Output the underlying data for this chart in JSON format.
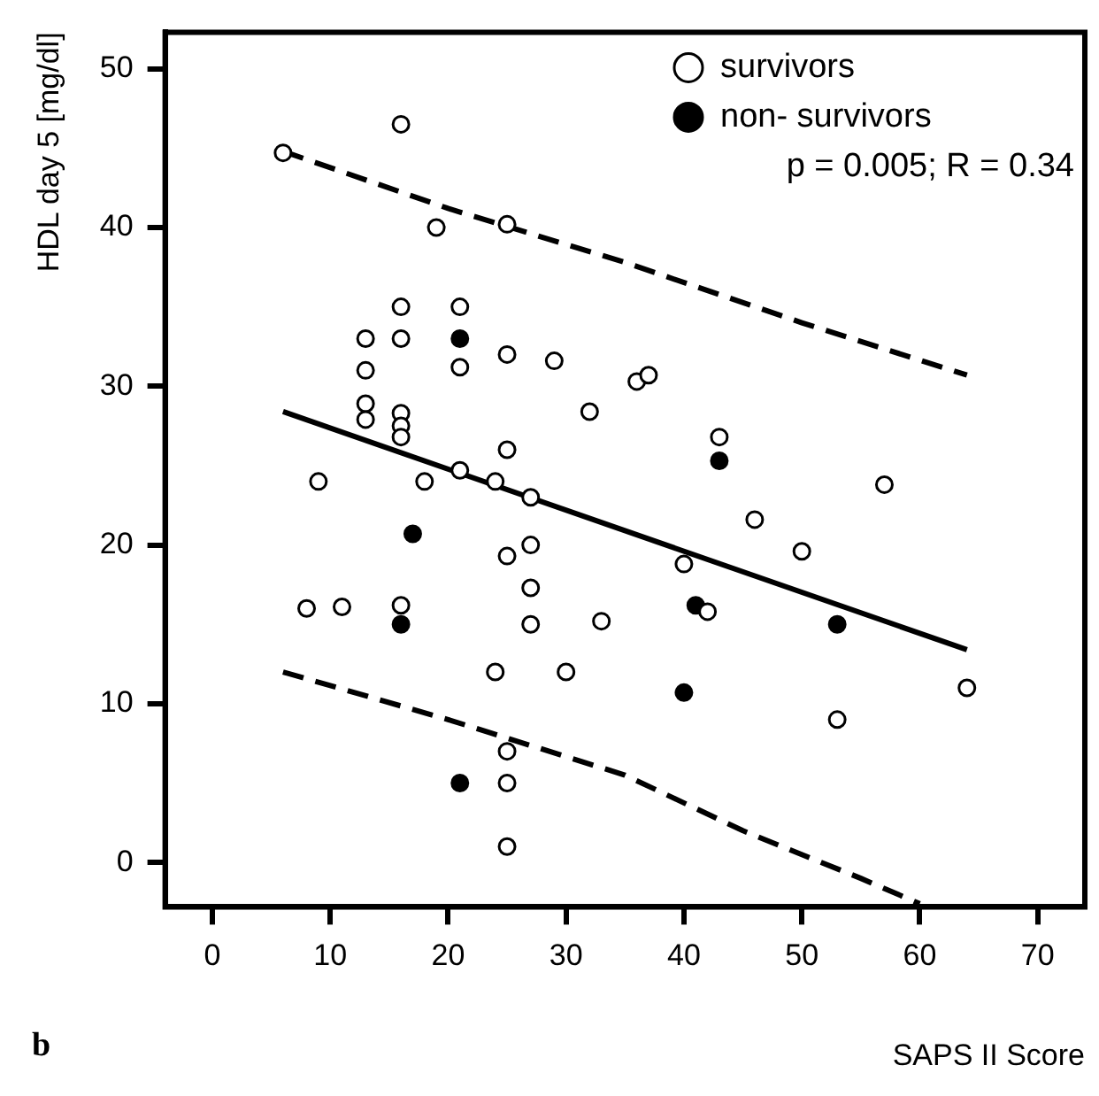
{
  "chart_data": {
    "type": "scatter",
    "xlabel": "SAPS II Score",
    "ylabel": "HDL day 5 [mg/dl]",
    "xlim": [
      -4,
      74
    ],
    "xticks": [
      0,
      10,
      20,
      30,
      40,
      50,
      60,
      70
    ],
    "ylim": [
      -2.8,
      52.3
    ],
    "yticks": [
      0,
      10,
      20,
      30,
      40,
      50
    ],
    "grid": false,
    "legend": "top right",
    "marker": "circle",
    "annotations": [
      "p = 0.005; R = 0.34",
      "b"
    ],
    "series": [
      {
        "name": "survivors",
        "color": "#ffffff",
        "x": [
          6,
          16,
          19,
          25,
          16,
          21,
          13,
          16,
          21,
          25,
          29,
          13,
          13,
          13,
          16,
          16,
          16,
          36,
          37,
          32,
          43,
          9,
          18,
          21,
          24,
          25,
          27,
          57,
          46,
          50,
          27,
          25,
          27,
          8,
          11,
          16,
          40,
          42,
          27,
          33,
          24,
          30,
          53,
          64,
          25,
          25,
          25
        ],
        "values": [
          44.7,
          46.5,
          40,
          40.2,
          35,
          35,
          33,
          33,
          31.2,
          32,
          31.6,
          31,
          28.9,
          27.9,
          28.3,
          27.5,
          26.8,
          30.3,
          30.7,
          28.4,
          26.8,
          24,
          24,
          24.7,
          24,
          26,
          23,
          23.8,
          21.6,
          19.6,
          20,
          19.3,
          17.3,
          16,
          16.1,
          16.2,
          18.8,
          15.8,
          15,
          15.2,
          12,
          12,
          9,
          11,
          7,
          5,
          1
        ]
      },
      {
        "name": "non- survivors",
        "color": "#000000",
        "x": [
          21,
          17,
          16,
          43,
          41,
          40,
          53,
          21
        ],
        "values": [
          33,
          20.7,
          15,
          25.3,
          16.2,
          10.7,
          15,
          5
        ]
      },
      {
        "type": "line",
        "color": "#000000",
        "line_style": "solid",
        "marker": "none",
        "x": [
          6,
          64
        ],
        "values": [
          28.4,
          13.4
        ]
      },
      {
        "type": "line",
        "color": "#000000",
        "line_style": "dashed",
        "marker": "none",
        "x": [
          6,
          20,
          35,
          50,
          64
        ],
        "values": [
          44.8,
          41.2,
          37.8,
          34,
          30.7
        ]
      },
      {
        "type": "line",
        "color": "#000000",
        "line_style": "dashed",
        "marker": "none",
        "x": [
          6,
          20,
          35,
          45,
          55,
          60
        ],
        "values": [
          12,
          9,
          5.5,
          2,
          -1,
          -2.6
        ]
      }
    ]
  }
}
